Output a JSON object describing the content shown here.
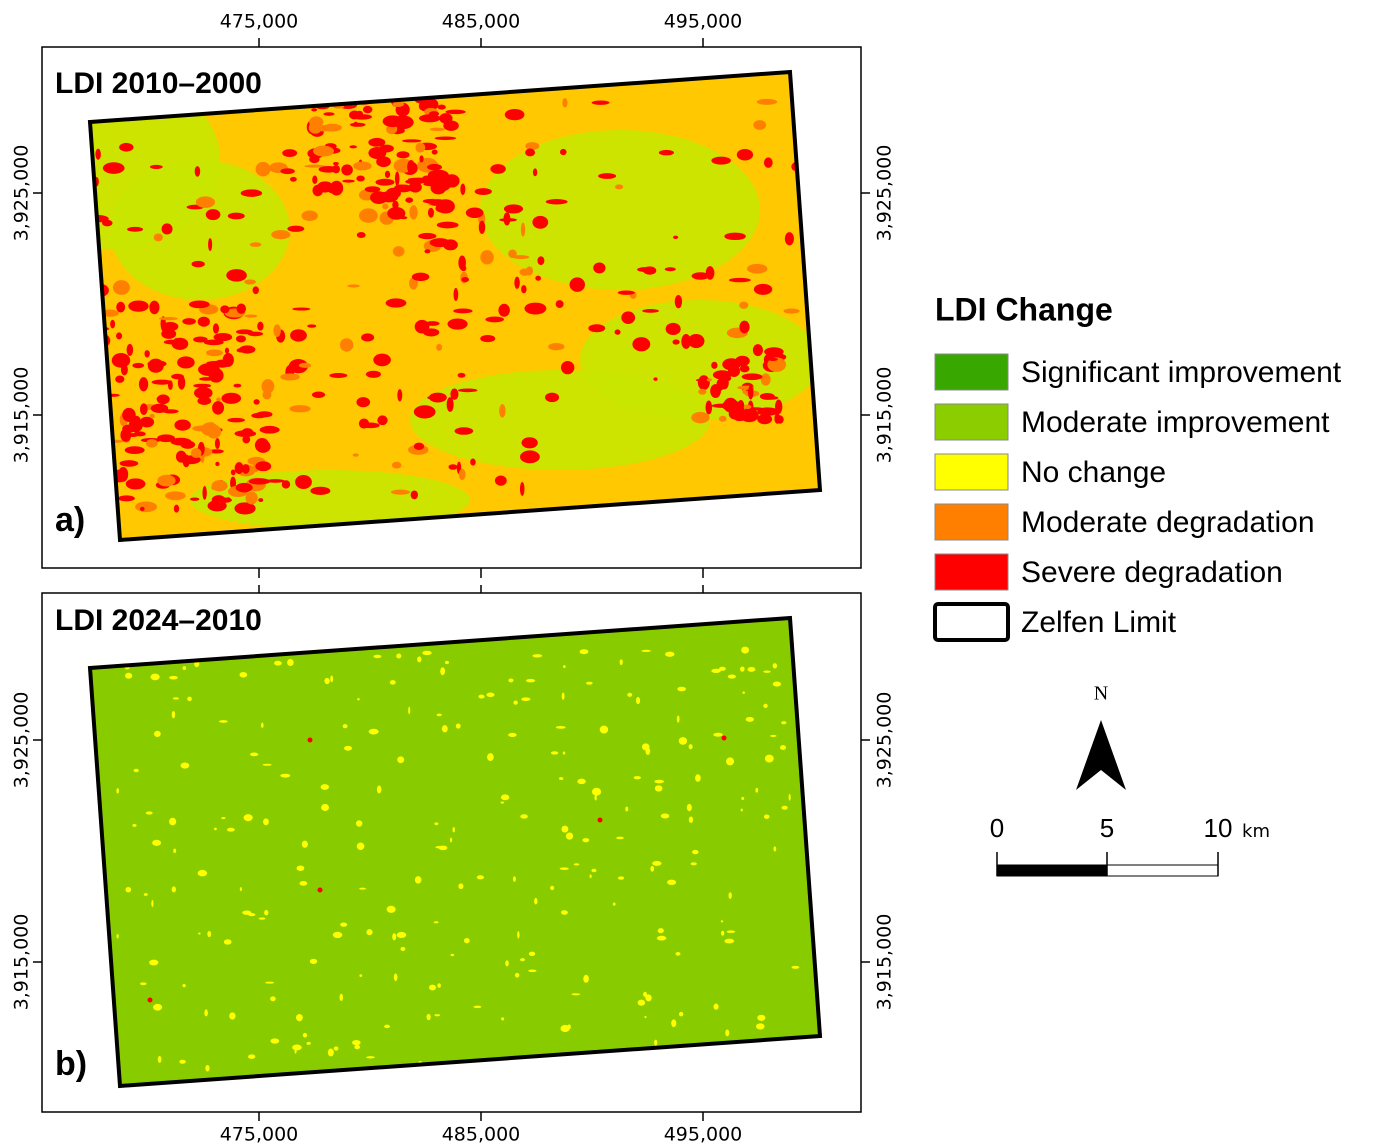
{
  "panels": [
    {
      "title": "LDI 2010–2000",
      "letter": "a)"
    },
    {
      "title": "LDI 2024–2010",
      "letter": "b)"
    }
  ],
  "x_ticks": [
    "475,000",
    "485,000",
    "495,000"
  ],
  "y_ticks": [
    "3,925,000",
    "3,915,000"
  ],
  "legend": {
    "title": "LDI Change",
    "items": [
      {
        "label": "Significant improvement",
        "color": "#38a800"
      },
      {
        "label": "Moderate improvement",
        "color": "#8ccd00"
      },
      {
        "label": "No change",
        "color": "#ffff00"
      },
      {
        "label": "Moderate degradation",
        "color": "#ff8000"
      },
      {
        "label": "Severe degradation",
        "color": "#ff0000"
      },
      {
        "label": "Zelfen Limit",
        "color": "#ffffff"
      }
    ]
  },
  "north": "N",
  "scale": {
    "labels": [
      "0",
      "5",
      "10"
    ],
    "unit": "km"
  }
}
